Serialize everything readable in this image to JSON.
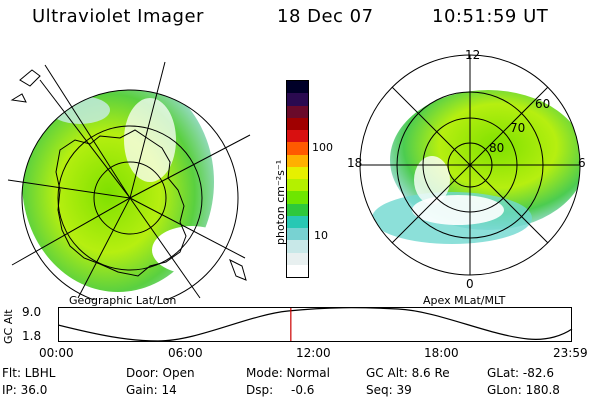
{
  "header": {
    "title": "Ultraviolet Imager",
    "date": "18 Dec 07",
    "time": "10:51:59 UT"
  },
  "geo_panel": {
    "caption": "Geographic Lat/Lon"
  },
  "apex_panel": {
    "caption": "Apex MLat/MLT",
    "mlt_labels": {
      "top": "12",
      "bottom": "0",
      "left": "18",
      "right": "6"
    },
    "mlat_labels": [
      "60",
      "70",
      "80"
    ]
  },
  "colorbar": {
    "unit_label": "photon cm⁻²s⁻¹",
    "ticks": [
      "100",
      "10"
    ],
    "colors": [
      "#000028",
      "#2a0a50",
      "#6a0a2a",
      "#a00000",
      "#d81010",
      "#ff5a00",
      "#ffb000",
      "#e6f000",
      "#b4f000",
      "#6ee600",
      "#2ec83c",
      "#28c8b4",
      "#78d2d2",
      "#c8e8e8",
      "#e8f0f0",
      "#ffffff"
    ]
  },
  "timeline": {
    "axis_label": "GC Alt",
    "y_ticks": [
      "9.0",
      "1.8"
    ],
    "x_ticks": [
      "00:00",
      "06:00",
      "12:00",
      "18:00",
      "23:59"
    ],
    "marker_fraction": 0.4528,
    "marker_color": "#cc0000"
  },
  "status": {
    "row1": {
      "filter": "Flt: LBHL",
      "door": "Door: Open",
      "mode": "Mode: Normal",
      "gc_alt": "GC Alt: 8.6 Re",
      "glat": "GLat: -82.6"
    },
    "row2": {
      "ip": "IP: 36.0",
      "gain": "Gain: 14",
      "dsp_label": "Dsp:",
      "dsp_value": "-0.6",
      "seq": "Seq: 39",
      "glon": "GLon: 180.8"
    }
  }
}
